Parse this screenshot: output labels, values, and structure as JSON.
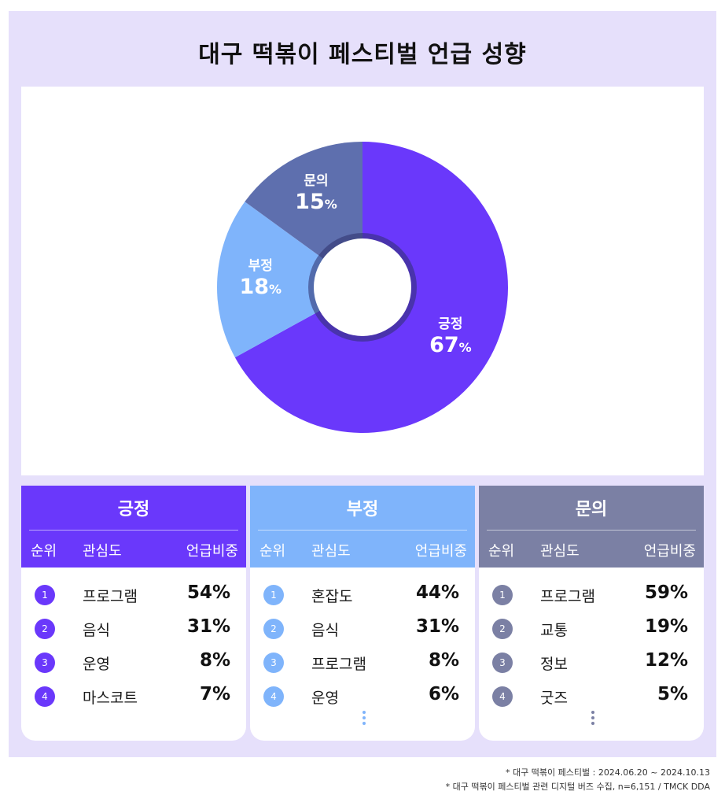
{
  "title": "대구 떡볶이 페스티벌 언급 성향",
  "chart_data": {
    "type": "pie",
    "variant": "donut",
    "categories": [
      "긍정",
      "부정",
      "문의"
    ],
    "values": [
      67,
      18,
      15
    ],
    "unit": "%",
    "colors": [
      "#6a38fb",
      "#7fb4fb",
      "#5e6fae"
    ]
  },
  "panels": [
    {
      "title": "긍정",
      "color": "#6a38fb",
      "columns": {
        "rank": "순위",
        "name": "관심도",
        "share": "언급비중"
      },
      "rows": [
        {
          "rank": "1",
          "name": "프로그램",
          "value": "54%"
        },
        {
          "rank": "2",
          "name": "음식",
          "value": "31%"
        },
        {
          "rank": "3",
          "name": "운영",
          "value": "8%"
        },
        {
          "rank": "4",
          "name": "마스코트",
          "value": "7%"
        }
      ],
      "more": false
    },
    {
      "title": "부정",
      "color": "#7fb4fb",
      "columns": {
        "rank": "순위",
        "name": "관심도",
        "share": "언급비중"
      },
      "rows": [
        {
          "rank": "1",
          "name": "혼잡도",
          "value": "44%"
        },
        {
          "rank": "2",
          "name": "음식",
          "value": "31%"
        },
        {
          "rank": "3",
          "name": "프로그램",
          "value": "8%"
        },
        {
          "rank": "4",
          "name": "운영",
          "value": "6%"
        }
      ],
      "more": true
    },
    {
      "title": "문의",
      "color": "#7b80a4",
      "columns": {
        "rank": "순위",
        "name": "관심도",
        "share": "언급비중"
      },
      "rows": [
        {
          "rank": "1",
          "name": "프로그램",
          "value": "59%"
        },
        {
          "rank": "2",
          "name": "교통",
          "value": "19%"
        },
        {
          "rank": "3",
          "name": "정보",
          "value": "12%"
        },
        {
          "rank": "4",
          "name": "굿즈",
          "value": "5%"
        }
      ],
      "more": true
    }
  ],
  "footnotes": [
    "* 대구 떡볶이 페스티벌 : 2024.06.20 ~ 2024.10.13",
    "* 대구 떡볶이 페스티벌  관련 디지털 버즈 수집, n=6,151 / TMCK DDA"
  ]
}
